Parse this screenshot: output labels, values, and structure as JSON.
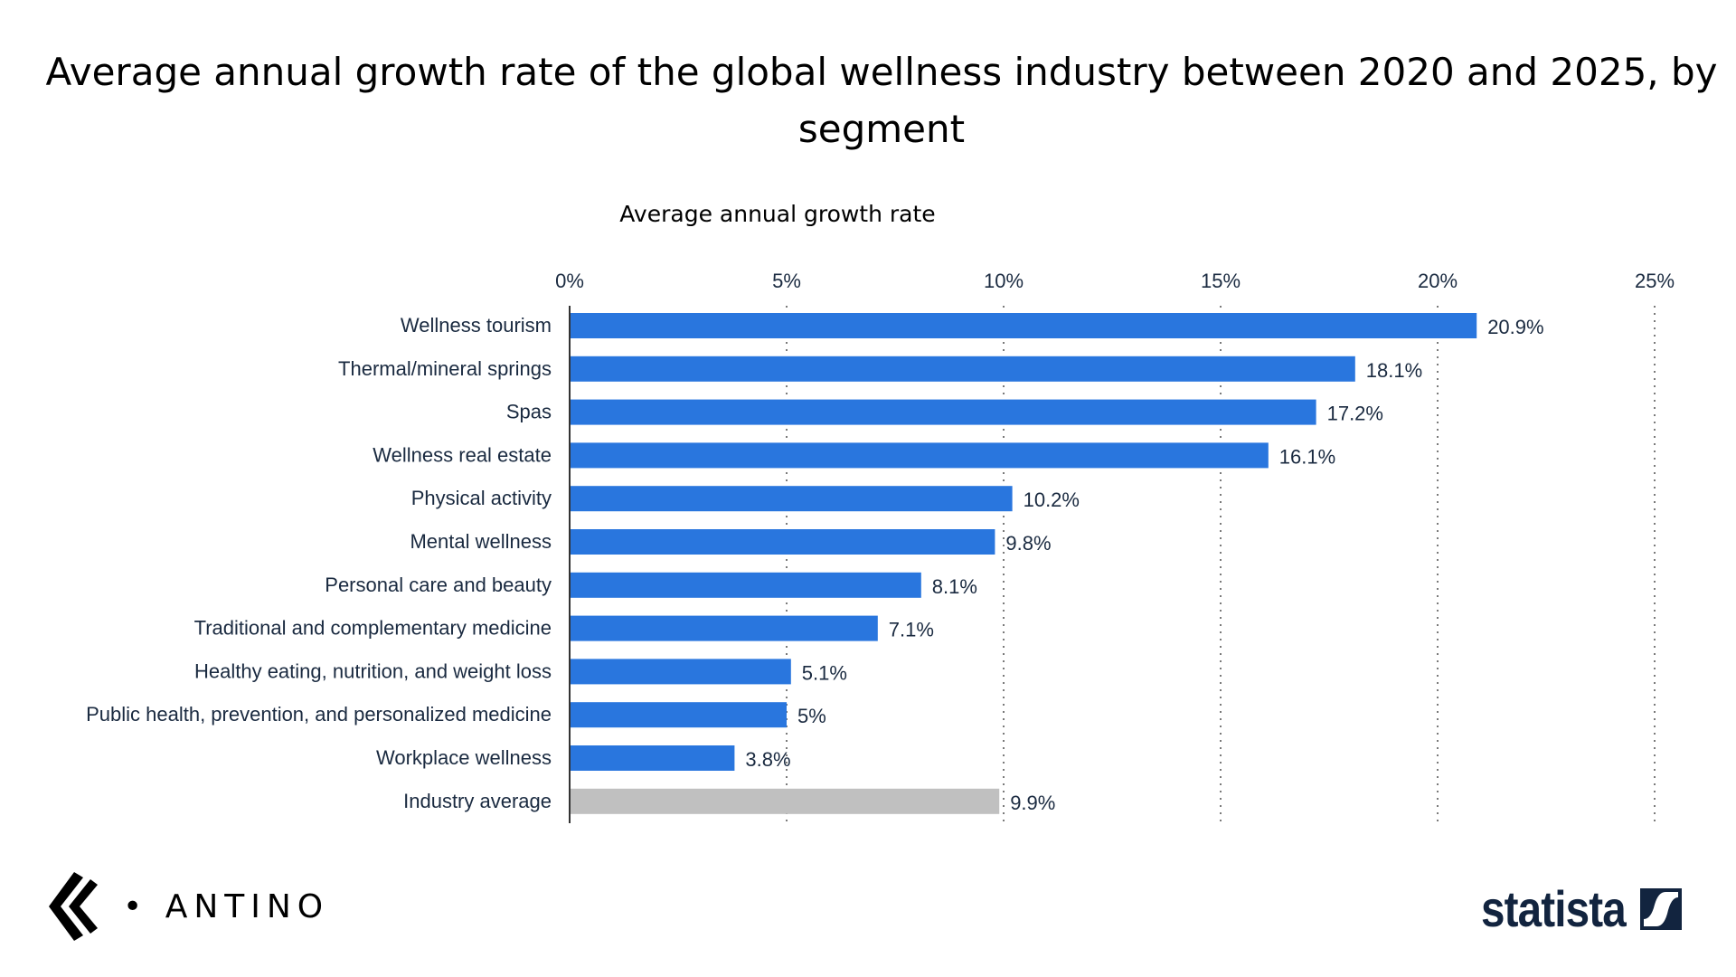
{
  "chart_data": {
    "type": "bar",
    "orientation": "horizontal",
    "title": "Average annual growth rate of the global wellness industry between 2020 and 2025, by segment",
    "xlabel": "Average annual growth rate",
    "ylabel": "",
    "xlim": [
      0,
      25
    ],
    "ticks": [
      "0%",
      "5%",
      "10%",
      "15%",
      "20%",
      "25%"
    ],
    "grid": true,
    "categories": [
      "Wellness tourism",
      "Thermal/mineral springs",
      "Spas",
      "Wellness real estate",
      "Physical activity",
      "Mental wellness",
      "Personal care and beauty",
      "Traditional and complementary medicine",
      "Healthy eating, nutrition, and weight loss",
      "Public health, prevention, and personalized medicine",
      "Workplace wellness",
      "Industry average"
    ],
    "values": [
      20.9,
      18.1,
      17.2,
      16.1,
      10.2,
      9.8,
      8.1,
      7.1,
      5.1,
      5,
      3.8,
      9.9
    ],
    "value_labels": [
      "20.9%",
      "18.1%",
      "17.2%",
      "16.1%",
      "10.2%",
      "9.8%",
      "8.1%",
      "7.1%",
      "5.1%",
      "5%",
      "3.8%",
      "9.9%"
    ],
    "colors": {
      "bar": "#2976de",
      "average": "#c0c0c0"
    }
  },
  "logos": {
    "left": "ANTINO",
    "right": "statista"
  }
}
